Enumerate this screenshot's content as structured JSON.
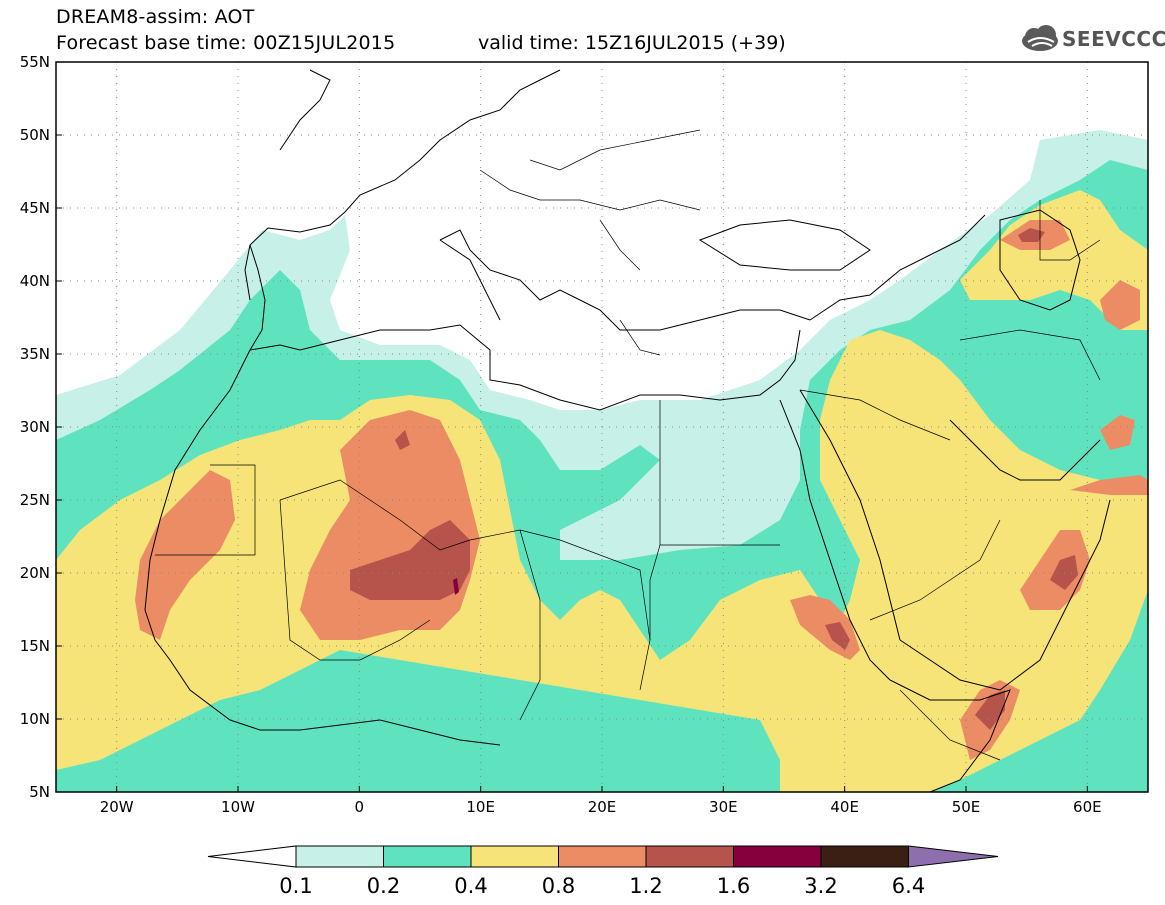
{
  "header": {
    "title": "DREAM8-assim: AOT",
    "base_time": "Forecast base time: 00Z15JUL2015",
    "valid_time": "valid time: 15Z16JUL2015 (+39)"
  },
  "logo": {
    "text": "SEEVCCC",
    "icon": "cloud-icon"
  },
  "map": {
    "lat_labels": [
      "55N",
      "50N",
      "45N",
      "40N",
      "35N",
      "30N",
      "25N",
      "20N",
      "15N",
      "10N",
      "5N"
    ],
    "lon_labels": [
      "20W",
      "10W",
      "0",
      "10E",
      "20E",
      "30E",
      "40E",
      "50E",
      "60E"
    ],
    "lon_range": [
      -25,
      65
    ],
    "lat_range": [
      5,
      55
    ],
    "variable": "AOT"
  },
  "colorbar": {
    "levels": [
      "0.1",
      "0.2",
      "0.4",
      "0.8",
      "1.2",
      "1.6",
      "3.2",
      "6.4"
    ],
    "colors": [
      "#c7f0e9",
      "#5fe3be",
      "#f7e479",
      "#ec8c64",
      "#b6534a",
      "#85003d",
      "#3c1f14",
      "#8e6fae"
    ],
    "under_color": "#ffffff",
    "over_color": "#8e6fae"
  },
  "colors": {
    "c01": "#c7f0e9",
    "c02": "#5fe3be",
    "c04": "#f7e479",
    "c08": "#ec8c64",
    "c12": "#b6534a",
    "c16": "#85003d",
    "c32": "#3c1f14"
  }
}
